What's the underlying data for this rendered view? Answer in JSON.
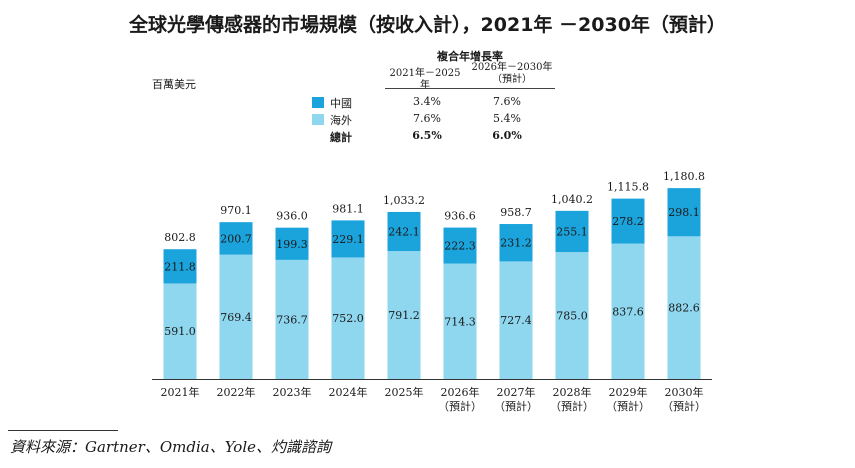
{
  "title": "全球光學傳感器的市場規模（按收入計），2021年 －2030年（預計）",
  "unit": "百萬美元",
  "cagr_table": {
    "heading": "複合年增長率",
    "col1": "2021年－2025年",
    "col2": [
      "2026年－2030年",
      "（預計）"
    ],
    "rows": [
      {
        "label": "中國",
        "v1": "3.4%",
        "v2": "7.6%",
        "color": "#1ba3dc",
        "bold": false
      },
      {
        "label": "海外",
        "v1": "7.6%",
        "v2": "5.4%",
        "color": "#8fd6ef",
        "bold": false
      },
      {
        "label": "總計",
        "v1": "6.5%",
        "v2": "6.0%",
        "color": "",
        "bold": true
      }
    ]
  },
  "chart_data": {
    "type": "bar",
    "stacked": true,
    "categories": [
      [
        "2021年"
      ],
      [
        "2022年"
      ],
      [
        "2023年"
      ],
      [
        "2024年"
      ],
      [
        "2025年"
      ],
      [
        "2026年",
        "（預計）"
      ],
      [
        "2027年",
        "（預計）"
      ],
      [
        "2028年",
        "（預計）"
      ],
      [
        "2029年",
        "（預計）"
      ],
      [
        "2030年",
        "（預計）"
      ]
    ],
    "series": [
      {
        "name": "海外",
        "color": "#8fd6ef",
        "values": [
          591.0,
          769.4,
          736.7,
          752.0,
          791.2,
          714.3,
          727.4,
          785.0,
          837.6,
          882.6
        ],
        "labels": [
          "591.0",
          "769.4",
          "736.7",
          "752.0",
          "791.2",
          "714.3",
          "727.4",
          "785.0",
          "837.6",
          "882.6"
        ]
      },
      {
        "name": "中國",
        "color": "#1ba3dc",
        "values": [
          211.8,
          200.7,
          199.3,
          229.1,
          242.1,
          222.3,
          231.2,
          255.1,
          278.2,
          298.1
        ],
        "labels": [
          "211.8",
          "200.7",
          "199.3",
          "229.1",
          "242.1",
          "222.3",
          "231.2",
          "255.1",
          "278.2",
          "298.1"
        ]
      }
    ],
    "totals": [
      "802.8",
      "970.1",
      "936.0",
      "981.1",
      "1,033.2",
      "936.6",
      "958.7",
      "1,040.2",
      "1,115.8",
      "1,180.8"
    ],
    "ylim": [
      0,
      1200
    ],
    "grid": false,
    "legend": "top-center"
  },
  "source": "資料來源：Gartner、Omdia、Yole、灼識諮詢"
}
